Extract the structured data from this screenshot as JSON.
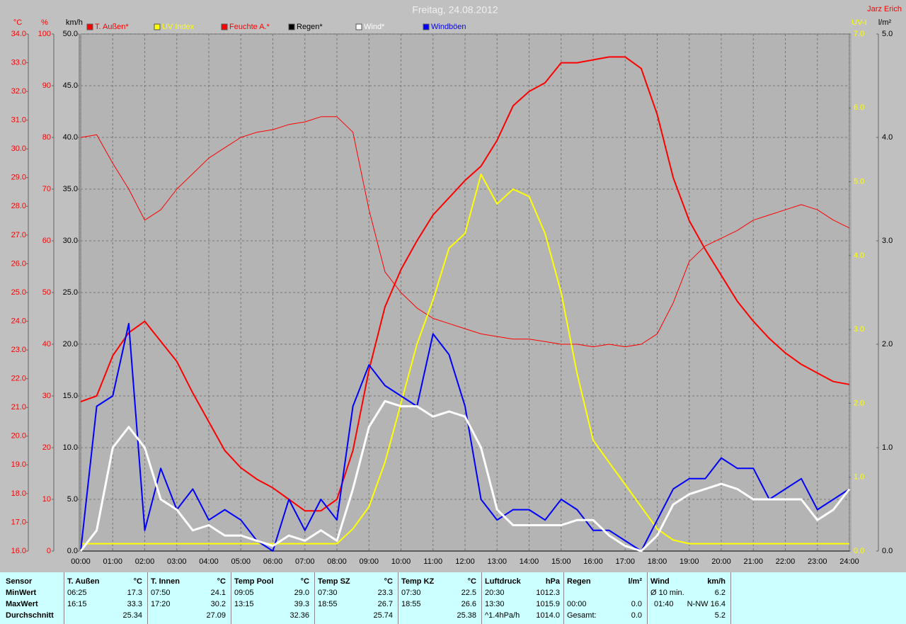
{
  "chart_data": {
    "type": "line",
    "title": "Freitag, 24.08.2012",
    "author": "Jarz Erich",
    "x": [
      "00:00",
      "00:30",
      "01:00",
      "01:30",
      "02:00",
      "02:30",
      "03:00",
      "03:30",
      "04:00",
      "04:30",
      "05:00",
      "05:30",
      "06:00",
      "06:30",
      "07:00",
      "07:30",
      "08:00",
      "08:30",
      "09:00",
      "09:30",
      "10:00",
      "10:30",
      "11:00",
      "11:30",
      "12:00",
      "12:30",
      "13:00",
      "13:30",
      "14:00",
      "14:30",
      "15:00",
      "15:30",
      "16:00",
      "16:30",
      "17:00",
      "17:30",
      "18:00",
      "18:30",
      "19:00",
      "19:30",
      "20:00",
      "20:30",
      "21:00",
      "21:30",
      "22:00",
      "22:30",
      "23:00",
      "23:30",
      "24:00"
    ],
    "xticks": [
      "00:00",
      "01:00",
      "02:00",
      "03:00",
      "04:00",
      "05:00",
      "06:00",
      "07:00",
      "08:00",
      "09:00",
      "10:00",
      "11:00",
      "12:00",
      "13:00",
      "14:00",
      "15:00",
      "16:00",
      "17:00",
      "18:00",
      "19:00",
      "20:00",
      "21:00",
      "22:00",
      "23:00",
      "24:00"
    ],
    "ylabel": "km/h",
    "ylim": [
      0,
      50
    ],
    "grid": true,
    "yticks": [
      {
        "value": 0,
        "label": "0.0"
      },
      {
        "value": 5,
        "label": "5.0"
      },
      {
        "value": 10,
        "label": "10.0"
      },
      {
        "value": 15,
        "label": "15.0"
      },
      {
        "value": 20,
        "label": "20.0"
      },
      {
        "value": 25,
        "label": "25.0"
      },
      {
        "value": 30,
        "label": "30.0"
      },
      {
        "value": 35,
        "label": "35.0"
      },
      {
        "value": 40,
        "label": "40.0"
      },
      {
        "value": 45,
        "label": "45.0"
      },
      {
        "value": 50,
        "label": "50.0"
      }
    ],
    "y2label": "°C",
    "y2lim": [
      16,
      34
    ],
    "y2ticks": [
      {
        "value": 16,
        "label": "16.0"
      },
      {
        "value": 17,
        "label": "17.0"
      },
      {
        "value": 18,
        "label": "18.0"
      },
      {
        "value": 19,
        "label": "19.0"
      },
      {
        "value": 20,
        "label": "20.0"
      },
      {
        "value": 21,
        "label": "21.0"
      },
      {
        "value": 22,
        "label": "22.0"
      },
      {
        "value": 23,
        "label": "23.0"
      },
      {
        "value": 24,
        "label": "24.0"
      },
      {
        "value": 25,
        "label": "25.0"
      },
      {
        "value": 26,
        "label": "26.0"
      },
      {
        "value": 27,
        "label": "27.0"
      },
      {
        "value": 28,
        "label": "28.0"
      },
      {
        "value": 29,
        "label": "29.0"
      },
      {
        "value": 30,
        "label": "30.0"
      },
      {
        "value": 31,
        "label": "31.0"
      },
      {
        "value": 32,
        "label": "32.0"
      },
      {
        "value": 33,
        "label": "33.0"
      },
      {
        "value": 34,
        "label": "34.0"
      }
    ],
    "y3label": "%",
    "y3lim": [
      0,
      100
    ],
    "y3ticks": [
      0,
      10,
      20,
      30,
      40,
      50,
      60,
      70,
      80,
      90,
      100
    ],
    "y4label": "UV-I",
    "y4lim": [
      0,
      7
    ],
    "y4ticks": [
      {
        "value": 0,
        "label": "0.0"
      },
      {
        "value": 1,
        "label": "1.0"
      },
      {
        "value": 2,
        "label": "2.0"
      },
      {
        "value": 3,
        "label": "3.0"
      },
      {
        "value": 4,
        "label": "4.0"
      },
      {
        "value": 5,
        "label": "5.0"
      },
      {
        "value": 6,
        "label": "6.0"
      },
      {
        "value": 7,
        "label": "7.0"
      }
    ],
    "y5label": "l/m²",
    "y5lim": [
      0,
      5
    ],
    "y5ticks": [
      {
        "value": 0,
        "label": "0.0"
      },
      {
        "value": 1,
        "label": "1.0"
      },
      {
        "value": 2,
        "label": "2.0"
      },
      {
        "value": 3,
        "label": "3.0"
      },
      {
        "value": 4,
        "label": "4.0"
      },
      {
        "value": 5,
        "label": "5.0"
      }
    ],
    "series": [
      {
        "name": "T. Außen*",
        "color": "#ff0000",
        "axis": "y2",
        "values": [
          21.2,
          21.4,
          22.8,
          23.6,
          24.0,
          23.3,
          22.6,
          21.5,
          20.5,
          19.5,
          18.9,
          18.5,
          18.2,
          17.8,
          17.4,
          17.4,
          17.8,
          19.5,
          22.3,
          24.5,
          25.8,
          26.8,
          27.7,
          28.3,
          28.9,
          29.4,
          30.3,
          31.5,
          32.0,
          32.3,
          33.0,
          33.0,
          33.1,
          33.2,
          33.2,
          32.8,
          31.2,
          29.0,
          27.5,
          26.5,
          25.6,
          24.7,
          24.0,
          23.4,
          22.9,
          22.5,
          22.2,
          21.9,
          21.8
        ]
      },
      {
        "name": "UV Index",
        "color": "#ffff00",
        "axis": "y4",
        "values": [
          0.1,
          0.1,
          0.1,
          0.1,
          0.1,
          0.1,
          0.1,
          0.1,
          0.1,
          0.1,
          0.1,
          0.1,
          0.1,
          0.1,
          0.1,
          0.1,
          0.1,
          0.3,
          0.6,
          1.2,
          2.0,
          2.8,
          3.4,
          4.1,
          4.3,
          5.1,
          4.7,
          4.9,
          4.8,
          4.3,
          3.5,
          2.4,
          1.5,
          1.2,
          0.9,
          0.6,
          0.3,
          0.15,
          0.1,
          0.1,
          0.1,
          0.1,
          0.1,
          0.1,
          0.1,
          0.1,
          0.1,
          0.1,
          0.1
        ]
      },
      {
        "name": "Feuchte A.*",
        "color": "#ff0000",
        "axis": "y3",
        "values": [
          80,
          80.5,
          75,
          70,
          64,
          66,
          70,
          73,
          76,
          78,
          80,
          81,
          81.5,
          82.5,
          83,
          84,
          84,
          81,
          66,
          54,
          50,
          47,
          45,
          44,
          43,
          42,
          41.5,
          41,
          41,
          40.5,
          40,
          40,
          39.5,
          40,
          39.5,
          40,
          42,
          48,
          56,
          59,
          60.5,
          62,
          64,
          65,
          66,
          67,
          66,
          64,
          62.5
        ]
      },
      {
        "name": "Regen*",
        "color": "#000000",
        "axis": "y5",
        "values": [
          0,
          0,
          0,
          0,
          0,
          0,
          0,
          0,
          0,
          0,
          0,
          0,
          0,
          0,
          0,
          0,
          0,
          0,
          0,
          0,
          0,
          0,
          0,
          0,
          0,
          0,
          0,
          0,
          0,
          0,
          0,
          0,
          0,
          0,
          0,
          0,
          0,
          0,
          0,
          0,
          0,
          0,
          0,
          0,
          0,
          0,
          0,
          0,
          0
        ]
      },
      {
        "name": "Wind*",
        "color": "#ffffff",
        "axis": "y",
        "values": [
          0,
          2,
          10,
          12,
          10,
          5,
          4,
          2,
          2.5,
          1.5,
          1.5,
          1,
          0.5,
          1.5,
          1,
          2,
          1,
          6,
          12,
          14.5,
          14,
          14,
          13,
          13.5,
          13,
          10,
          4,
          2.5,
          2.5,
          2.5,
          2.5,
          3,
          3,
          1.5,
          0.5,
          0,
          1.5,
          4.5,
          5.5,
          6,
          6.5,
          6,
          5,
          5,
          5,
          5,
          3,
          4,
          6
        ]
      },
      {
        "name": "Windböen",
        "color": "#0000ff",
        "axis": "y",
        "values": [
          0,
          14,
          15,
          22,
          2,
          8,
          4,
          6,
          3,
          4,
          3,
          1,
          0,
          5,
          2,
          5,
          3,
          14,
          18,
          16,
          15,
          14,
          21,
          19,
          14,
          5,
          3,
          4,
          4,
          3,
          5,
          4,
          2,
          2,
          1,
          0,
          3,
          6,
          7,
          7,
          9,
          8,
          8,
          5,
          6,
          7,
          4,
          5,
          6
        ]
      }
    ]
  },
  "table": {
    "labels": [
      "Sensor",
      "MinWert",
      "MaxWert",
      "Durchschnitt"
    ],
    "columns": [
      {
        "name": "T. Außen",
        "unit": "°C",
        "rows": [
          [
            "06:25",
            "17.3"
          ],
          [
            "16:15",
            "33.3"
          ],
          [
            "25.34"
          ]
        ]
      },
      {
        "name": "T. Innen",
        "unit": "°C",
        "rows": [
          [
            "07:50",
            "24.1"
          ],
          [
            "17:20",
            "30.2"
          ],
          [
            "27.09"
          ]
        ]
      },
      {
        "name": "Temp Pool",
        "unit": "°C",
        "rows": [
          [
            "09:05",
            "29.0"
          ],
          [
            "13:15",
            "39.3"
          ],
          [
            "32.36"
          ]
        ]
      },
      {
        "name": "Temp SZ",
        "unit": "°C",
        "rows": [
          [
            "07:30",
            "23.3"
          ],
          [
            "18:55",
            "26.7"
          ],
          [
            "25.74"
          ]
        ]
      },
      {
        "name": "Temp KZ",
        "unit": "°C",
        "rows": [
          [
            "07:30",
            "22.5"
          ],
          [
            "18:55",
            "26.6"
          ],
          [
            "25.38"
          ]
        ]
      },
      {
        "name": "Luftdruck",
        "unit": "hPa",
        "rows": [
          [
            "20:30",
            "1012.3"
          ],
          [
            "13:30",
            "1015.9"
          ],
          [
            "^1.4hPa/h",
            "1014.0"
          ]
        ]
      },
      {
        "name": "Regen",
        "unit": "l/m²",
        "rows": [
          [],
          [
            "00:00",
            "0.0"
          ],
          [
            "Gesamt:",
            "0.0"
          ]
        ]
      },
      {
        "name": "Wind",
        "unit": "km/h",
        "rows": [
          [
            "Ø 10 min.",
            "6.2"
          ],
          [
            "01:40",
            "N-NW 16.4"
          ],
          [
            "5.2"
          ]
        ]
      }
    ]
  }
}
